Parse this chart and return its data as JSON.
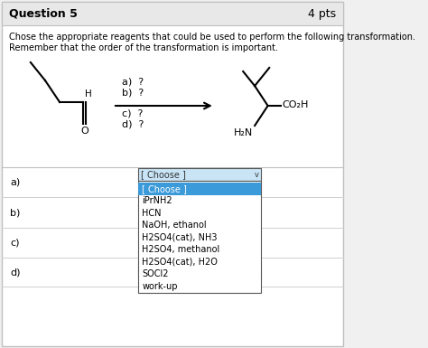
{
  "title": "Question 5",
  "pts": "4 pts",
  "instruction_line1": "Chose the appropriate reagents that could be used to perform the following transformation.",
  "instruction_line2": "Remember that the order of the transformation is important.",
  "reagent_labels": [
    "a)",
    "b)",
    "c)",
    "d)"
  ],
  "dropdown_items": [
    "[ Choose ]",
    "iPrNH2",
    "HCN",
    "NaOH, ethanol",
    "H2SO4(cat), NH3",
    "H2SO4, methanol",
    "H2SO4(cat), H2O",
    "SOCl2",
    "work-up"
  ],
  "highlighted_item": "[ Choose ]",
  "bg_color": "#f0f0f0",
  "header_bg": "#e8e8e8",
  "content_bg": "#ffffff",
  "border_color": "#c0c0c0",
  "dropdown_highlight": "#3b9ad9",
  "dropdown_border": "#555555",
  "text_color": "#000000",
  "row_sep_color": "#d0d0d0",
  "header_fontsize": 9,
  "body_fontsize": 7,
  "mol_lw": 1.5
}
